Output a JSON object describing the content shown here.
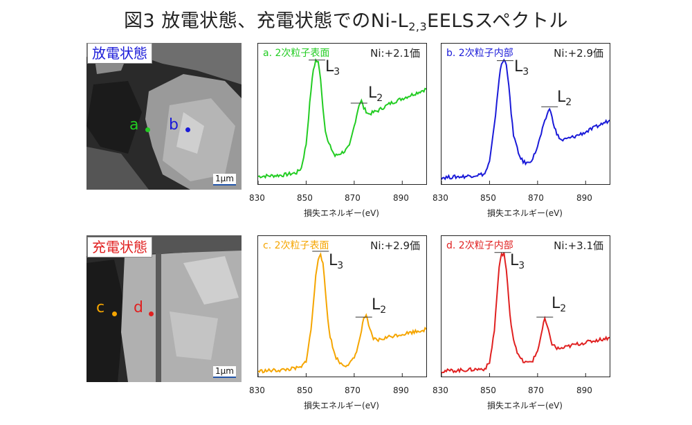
{
  "title": {
    "main": "図3 放電状態、充電状態でのNi-L",
    "sub": "2,3",
    "tail": "EELSスペクトル"
  },
  "rows": [
    {
      "label": "放電状態",
      "label_color": "#1a1ad8",
      "scale": "1μm",
      "points": [
        {
          "name": "a",
          "color": "#22cc22"
        },
        {
          "name": "b",
          "color": "#1a1ad8"
        }
      ]
    },
    {
      "label": "充電状態",
      "label_color": "#e02020",
      "scale": "1μm",
      "points": [
        {
          "name": "c",
          "color": "#f5a500"
        },
        {
          "name": "d",
          "color": "#e02020"
        }
      ]
    }
  ],
  "chart_data": [
    {
      "type": "line",
      "title": "a. 2次粒子表面",
      "oxidation": "Ni:+2.1価",
      "color": "#22cc22",
      "xlabel": "損失エネルギー(eV)",
      "xlim": [
        830,
        900
      ],
      "xticks": [
        830,
        850,
        870,
        890
      ],
      "peaks": [
        {
          "label": "L",
          "sub": "3",
          "x": 854.5
        },
        {
          "label": "L",
          "sub": "2",
          "x": 872
        }
      ],
      "x": [
        830,
        840,
        846,
        848,
        850,
        852,
        853,
        854,
        855,
        856,
        857,
        858,
        859,
        860,
        862,
        864,
        866,
        868,
        870,
        872,
        873,
        874,
        876,
        880,
        885,
        890,
        895,
        900
      ],
      "y": [
        0.03,
        0.04,
        0.06,
        0.1,
        0.3,
        0.75,
        0.92,
        1.0,
        0.98,
        0.85,
        0.6,
        0.42,
        0.32,
        0.28,
        0.2,
        0.22,
        0.24,
        0.28,
        0.45,
        0.63,
        0.66,
        0.6,
        0.55,
        0.58,
        0.64,
        0.68,
        0.72,
        0.76
      ]
    },
    {
      "type": "line",
      "title": "b. 2次粒子内部",
      "oxidation": "Ni:+2.9価",
      "color": "#1a1ad8",
      "xlabel": "損失エネルギー(eV)",
      "xlim": [
        830,
        900
      ],
      "xticks": [
        830,
        850,
        870,
        890
      ],
      "peaks": [
        {
          "label": "L",
          "sub": "3",
          "x": 856.5
        },
        {
          "label": "L",
          "sub": "2",
          "x": 875
        }
      ],
      "x": [
        830,
        840,
        848,
        850,
        852,
        854,
        855,
        856,
        857,
        858,
        859,
        860,
        862,
        864,
        866,
        868,
        870,
        872,
        874,
        875,
        876,
        878,
        880,
        885,
        890,
        895,
        900
      ],
      "y": [
        0.02,
        0.03,
        0.05,
        0.15,
        0.45,
        0.85,
        0.97,
        1.0,
        0.97,
        0.8,
        0.55,
        0.38,
        0.22,
        0.15,
        0.14,
        0.18,
        0.28,
        0.42,
        0.55,
        0.6,
        0.52,
        0.38,
        0.33,
        0.36,
        0.4,
        0.45,
        0.5
      ]
    },
    {
      "type": "line",
      "title": "c. 2次粒子表面",
      "oxidation": "Ni:+2.9価",
      "color": "#f5a500",
      "xlabel": "損失エネルギー(eV)",
      "xlim": [
        830,
        900
      ],
      "xticks": [
        830,
        850,
        870,
        890
      ],
      "peaks": [
        {
          "label": "L",
          "sub": "3",
          "x": 856
        },
        {
          "label": "L",
          "sub": "2",
          "x": 874
        }
      ],
      "x": [
        830,
        840,
        848,
        850,
        852,
        854,
        855,
        856,
        857,
        858,
        859,
        860,
        862,
        864,
        866,
        868,
        870,
        872,
        874,
        875,
        876,
        878,
        880,
        885,
        890,
        895,
        900
      ],
      "y": [
        0.01,
        0.02,
        0.04,
        0.1,
        0.35,
        0.8,
        0.95,
        1.0,
        0.9,
        0.68,
        0.45,
        0.3,
        0.14,
        0.08,
        0.06,
        0.07,
        0.12,
        0.25,
        0.45,
        0.48,
        0.38,
        0.28,
        0.27,
        0.3,
        0.32,
        0.34,
        0.36
      ]
    },
    {
      "type": "line",
      "title": "d. 2次粒子内部",
      "oxidation": "Ni:+3.1価",
      "color": "#e02020",
      "xlabel": "損失エネルギー(eV)",
      "xlim": [
        830,
        900
      ],
      "xticks": [
        830,
        850,
        870,
        890
      ],
      "peaks": [
        {
          "label": "L",
          "sub": "3",
          "x": 855.5
        },
        {
          "label": "L",
          "sub": "2",
          "x": 873
        }
      ],
      "x": [
        830,
        840,
        848,
        850,
        852,
        853,
        854,
        855,
        856,
        857,
        858,
        859,
        860,
        862,
        864,
        866,
        868,
        870,
        872,
        873,
        874,
        876,
        878,
        880,
        885,
        890,
        895,
        900
      ],
      "y": [
        0.01,
        0.02,
        0.03,
        0.08,
        0.35,
        0.62,
        0.88,
        0.98,
        1.0,
        0.85,
        0.6,
        0.4,
        0.28,
        0.14,
        0.09,
        0.08,
        0.1,
        0.18,
        0.36,
        0.45,
        0.38,
        0.24,
        0.2,
        0.2,
        0.23,
        0.25,
        0.27,
        0.29
      ]
    }
  ]
}
